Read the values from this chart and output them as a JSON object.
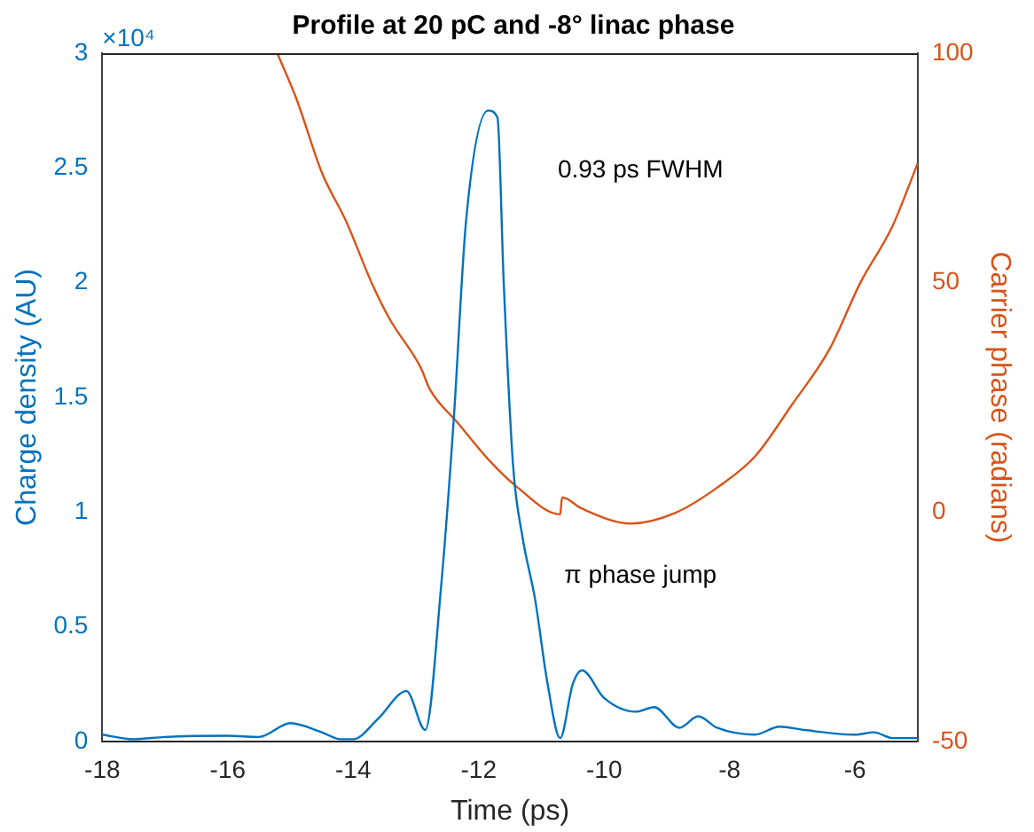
{
  "chart_data": {
    "type": "line",
    "title": "Profile at 20 pC and -8° linac phase",
    "xlabel": "Time (ps)",
    "ylabel": "Charge density (AU)",
    "y2label": "Carrier phase (radians)",
    "xlim": [
      -18,
      -5
    ],
    "xticks": [
      -18,
      -16,
      -14,
      -12,
      -10,
      -8,
      -6
    ],
    "ylim": [
      0,
      3
    ],
    "yticks": [
      0,
      0.5,
      1,
      1.5,
      2,
      2.5,
      3
    ],
    "y2lim": [
      -50,
      100
    ],
    "y2ticks": [
      -50,
      0,
      50,
      100
    ],
    "grid": false,
    "legend": false,
    "marker": "none",
    "line_style": "solid",
    "annotations": [
      "×10⁴",
      "0.93 ps FWHM",
      "π phase jump"
    ],
    "series": [
      {
        "color": "#0072bd",
        "x": [
          -18,
          -17.5,
          -17,
          -16,
          -15.5,
          -15,
          -14.5,
          -14.2,
          -14,
          -13.6,
          -13.15,
          -12.85,
          -12.6,
          -12.4,
          -12.2,
          -11.85,
          -11.7,
          -11.6,
          -11.45,
          -11.3,
          -11.1,
          -10.9,
          -10.7,
          -10.5,
          -10.35,
          -10,
          -9.5,
          -9.2,
          -8.8,
          -8.5,
          -8.2,
          -7.6,
          -7.2,
          -6.8,
          -6,
          -5.7,
          -5.4,
          -5
        ],
        "values": [
          0.03,
          0.01,
          0.02,
          0.025,
          0.02,
          0.08,
          0.04,
          0.01,
          0.01,
          0.1,
          0.22,
          0.05,
          0.67,
          1.39,
          2.27,
          2.75,
          2.72,
          2,
          1.2,
          0.89,
          0.62,
          0.25,
          0.015,
          0.25,
          0.31,
          0.19,
          0.13,
          0.15,
          0.06,
          0.11,
          0.06,
          0.03,
          0.065,
          0.05,
          0.03,
          0.04,
          0.015,
          0.015
        ]
      },
      {
        "color": "#d95319",
        "axis": "y2",
        "x": [
          -15.21,
          -14.9,
          -14.5,
          -14.11,
          -13.71,
          -13.42,
          -12.92,
          -12.78,
          -12.33,
          -11.84,
          -11.39,
          -10.7,
          -10.67,
          -10.36,
          -9.57,
          -8.87,
          -8.18,
          -7.59,
          -7.0,
          -6.41,
          -5.91,
          -5.41,
          -5
        ],
        "values": [
          100,
          89.9,
          74,
          63.3,
          50.1,
          42.1,
          31.4,
          26.8,
          19.4,
          11.4,
          5.5,
          -0.5,
          3.2,
          0.8,
          -2.5,
          -0.2,
          5.5,
          12.2,
          23.5,
          35.4,
          50.1,
          62.1,
          76
        ]
      }
    ]
  }
}
